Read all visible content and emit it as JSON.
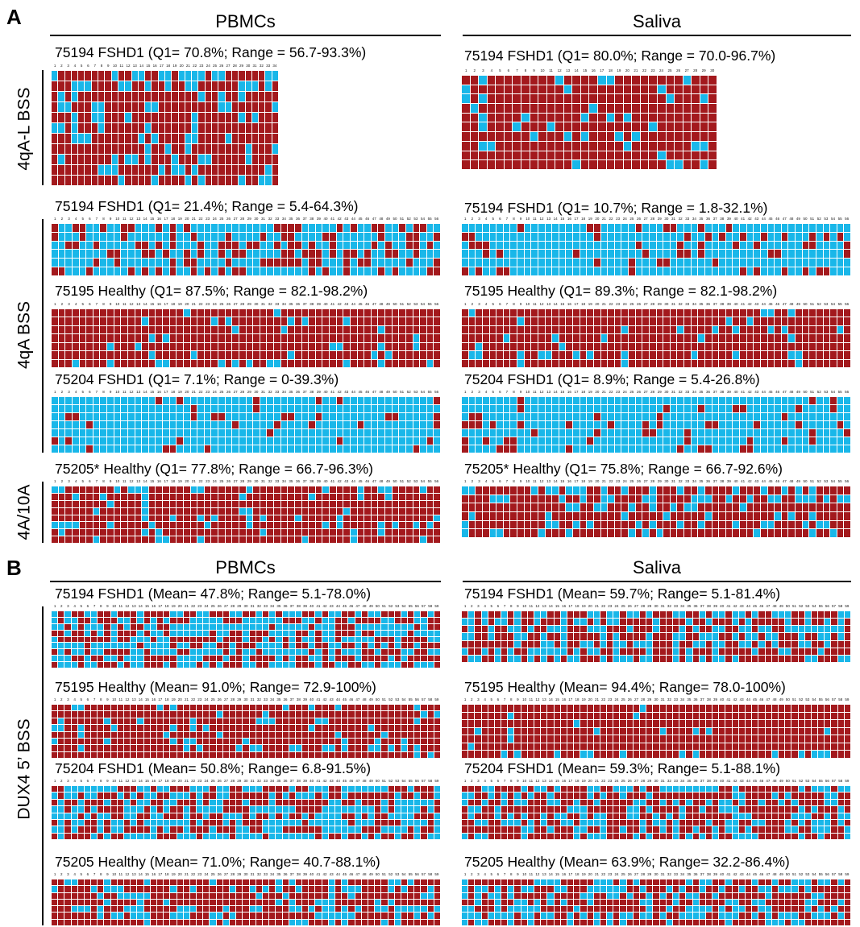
{
  "figure": {
    "panel_a": "A",
    "panel_b": "B",
    "col_pbmc": "PBMCs",
    "col_saliva": "Saliva",
    "row_4qAL": "4qA-L BSS",
    "row_4qA": "4qA BSS",
    "row_4A10A": "4A/10A",
    "row_dux4": "DUX4 5’ BSS"
  },
  "colors": {
    "methylated": "#a3191d",
    "unmethylated": "#19b7e9",
    "missing": "#ffffff",
    "gap": "#e6e6e6",
    "gridline": "#ffffff"
  },
  "chart_data": [
    {
      "type": "heatmap",
      "id": "a1",
      "side": "PBMCs",
      "title": "75194 FSHD1 (Q1= 70.8%; Range = 56.7-93.3%)",
      "columns": 34,
      "rows": 11,
      "seed": 11,
      "red_fraction": 0.78
    },
    {
      "type": "heatmap",
      "id": "a2",
      "side": "Saliva",
      "title": "75194 FSHD1 (Q1= 80.0%; Range = 70.0-96.7%)",
      "columns": 30,
      "rows": 10,
      "seed": 12,
      "red_fraction": 0.84
    },
    {
      "type": "heatmap",
      "id": "a3",
      "side": "PBMCs",
      "title": "75194 FSHD1 (Q1= 21.4%; Range = 5.4-64.3%)",
      "columns": 56,
      "rows": 6,
      "seed": 13,
      "red_fraction": 0.32
    },
    {
      "type": "heatmap",
      "id": "a4",
      "side": "Saliva",
      "title": "75194 FSHD1 (Q1= 10.7%; Range = 1.8-32.1%)",
      "columns": 56,
      "rows": 6,
      "seed": 14,
      "red_fraction": 0.22
    },
    {
      "type": "heatmap",
      "id": "a5",
      "side": "PBMCs",
      "title": "75195 Healthy (Q1= 87.5%; Range = 82.1-98.2%)",
      "columns": 56,
      "rows": 7,
      "seed": 15,
      "red_fraction": 0.9
    },
    {
      "type": "heatmap",
      "id": "a6",
      "side": "Saliva",
      "title": "75195 Healthy (Q1= 89.3%; Range = 82.1-98.2%)",
      "columns": 56,
      "rows": 7,
      "seed": 16,
      "red_fraction": 0.91
    },
    {
      "type": "heatmap",
      "id": "a7",
      "side": "PBMCs",
      "title": "75204 FSHD1 (Q1= 7.1%; Range = 0-39.3%)",
      "columns": 56,
      "rows": 7,
      "seed": 17,
      "red_fraction": 0.12
    },
    {
      "type": "heatmap",
      "id": "a8",
      "side": "Saliva",
      "title": "75204 FSHD1 (Q1= 8.9%; Range = 5.4-26.8%)",
      "columns": 56,
      "rows": 7,
      "seed": 18,
      "red_fraction": 0.15
    },
    {
      "type": "heatmap",
      "id": "a9",
      "side": "PBMCs",
      "title": "75205* Healthy (Q1= 77.8%; Range = 66.7-96.3%)",
      "columns": 56,
      "rows": 8,
      "seed": 19,
      "red_fraction": 0.78
    },
    {
      "type": "heatmap",
      "id": "a10",
      "side": "Saliva",
      "title": "75205* Healthy (Q1= 75.8%; Range = 66.7-92.6%)",
      "columns": 56,
      "rows": 6,
      "seed": 20,
      "red_fraction": 0.76
    },
    {
      "type": "heatmap",
      "id": "b1",
      "side": "PBMCs",
      "title": "75194 FSHD1 (Mean= 47.8%; Range= 5.1-78.0%)",
      "columns": 59,
      "rows": 9,
      "seed": 21,
      "red_fraction": 0.48
    },
    {
      "type": "heatmap",
      "id": "b2",
      "side": "Saliva",
      "title": "75194 FSHD1 (Mean= 59.7%; Range= 5.1-81.4%)",
      "columns": 59,
      "rows": 7,
      "seed": 22,
      "red_fraction": 0.6
    },
    {
      "type": "heatmap",
      "id": "b3",
      "side": "PBMCs",
      "title": "75195 Healthy (Mean= 91.0%; Range= 72.9-100%)",
      "columns": 59,
      "rows": 8,
      "seed": 23,
      "red_fraction": 0.91
    },
    {
      "type": "heatmap",
      "id": "b4",
      "side": "Saliva",
      "title": "75195 Healthy (Mean= 94.4%; Range= 78.0-100%)",
      "columns": 59,
      "rows": 7,
      "seed": 24,
      "red_fraction": 0.944
    },
    {
      "type": "heatmap",
      "id": "b5",
      "side": "PBMCs",
      "title": "75204 FSHD1 (Mean= 50.8%; Range= 6.8-91.5%)",
      "columns": 59,
      "rows": 8,
      "seed": 25,
      "red_fraction": 0.51
    },
    {
      "type": "heatmap",
      "id": "b6",
      "side": "Saliva",
      "title": "75204 FSHD1 (Mean= 59.3%; Range= 5.1-88.1%)",
      "columns": 59,
      "rows": 8,
      "seed": 26,
      "red_fraction": 0.59
    },
    {
      "type": "heatmap",
      "id": "b7",
      "side": "PBMCs",
      "title": "75205 Healthy (Mean= 71.0%; Range= 40.7-88.1%)",
      "columns": 59,
      "rows": 7,
      "seed": 27,
      "red_fraction": 0.71
    },
    {
      "type": "heatmap",
      "id": "b8",
      "side": "Saliva",
      "title": "75205 Healthy (Mean= 63.9%; Range= 32.2-86.4%)",
      "columns": 59,
      "rows": 7,
      "seed": 28,
      "red_fraction": 0.64
    }
  ]
}
